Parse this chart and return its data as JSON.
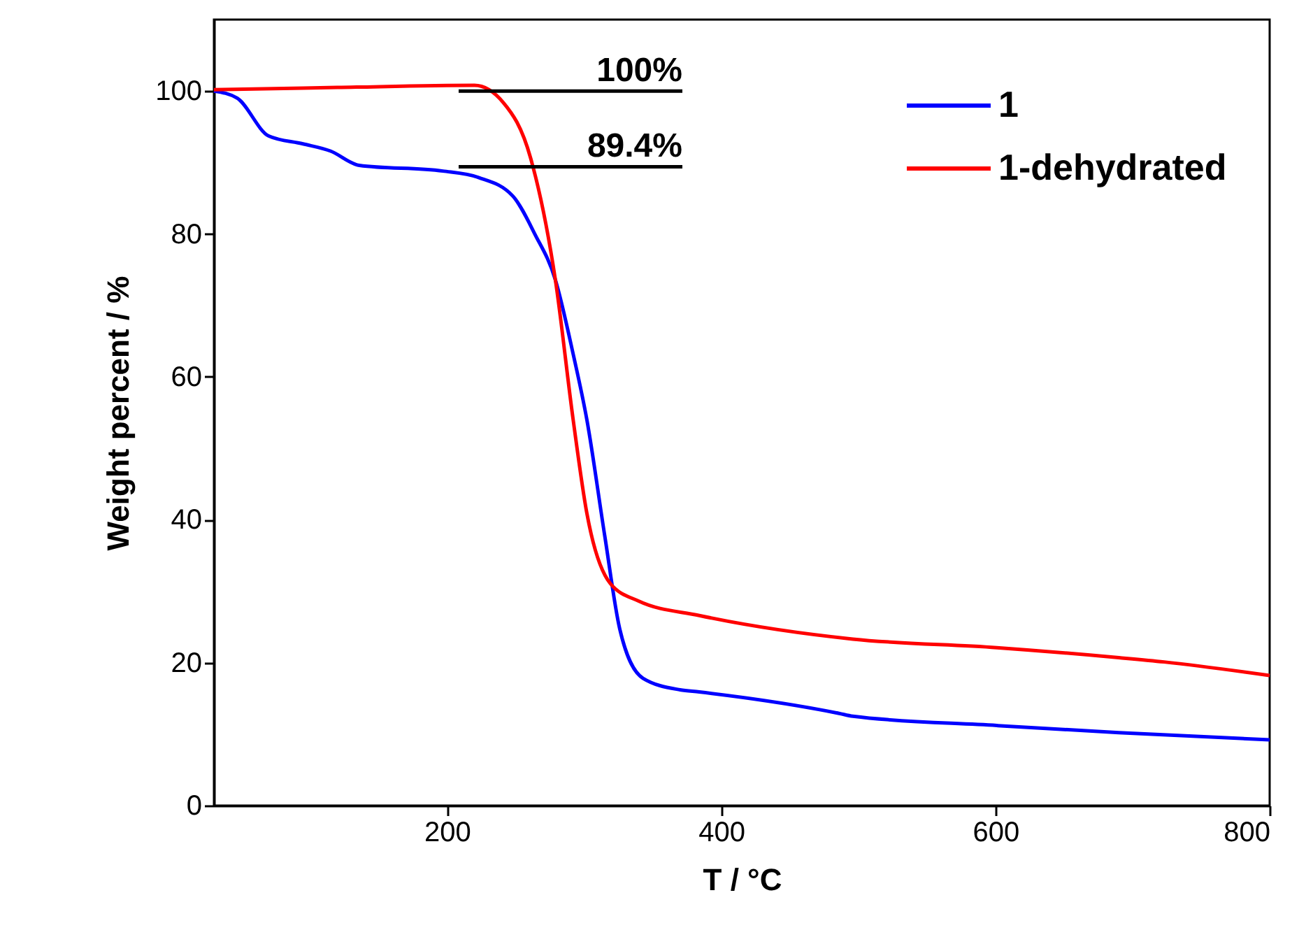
{
  "chart_data": {
    "type": "line",
    "xlabel": "T / °C",
    "ylabel": "Weight percent / %",
    "xlim": [
      30,
      800
    ],
    "xticks": [
      200,
      400,
      600,
      800
    ],
    "ylim": [
      0,
      110
    ],
    "yticks": [
      0,
      20,
      40,
      60,
      80,
      100
    ],
    "legend": "top right",
    "ref_lines": [
      {
        "axis": "y",
        "value": 100,
        "label": "100%"
      },
      {
        "axis": "y",
        "value": 89.4,
        "label": "89.4%"
      }
    ],
    "series": [
      {
        "name": "1",
        "color": "#0000ff",
        "x": [
          30,
          47,
          70,
          95,
          115,
          136,
          197,
          223,
          248,
          264,
          279,
          292,
          302,
          315,
          326,
          343,
          370,
          384,
          486,
          496,
          601,
          690,
          800
        ],
        "values": [
          100,
          99,
          93.7,
          92.6,
          91.6,
          89.6,
          88.8,
          87.9,
          85.3,
          80,
          73.6,
          63.2,
          54,
          37.8,
          24.7,
          17.8,
          16.2,
          15.9,
          12.9,
          12.5,
          11.2,
          10.2,
          9.2
        ]
      },
      {
        "name": "1-dehydrated",
        "color": "#ff0000",
        "x": [
          30,
          120,
          220,
          241,
          261,
          279,
          292,
          302,
          319,
          340,
          384,
          496,
          601,
          690,
          723,
          800
        ],
        "values": [
          100.2,
          100.5,
          100.8,
          98.4,
          90.6,
          73.6,
          54,
          40.9,
          31.1,
          28.6,
          26.6,
          23.3,
          22.1,
          20.7,
          20.1,
          18.2
        ]
      }
    ]
  }
}
